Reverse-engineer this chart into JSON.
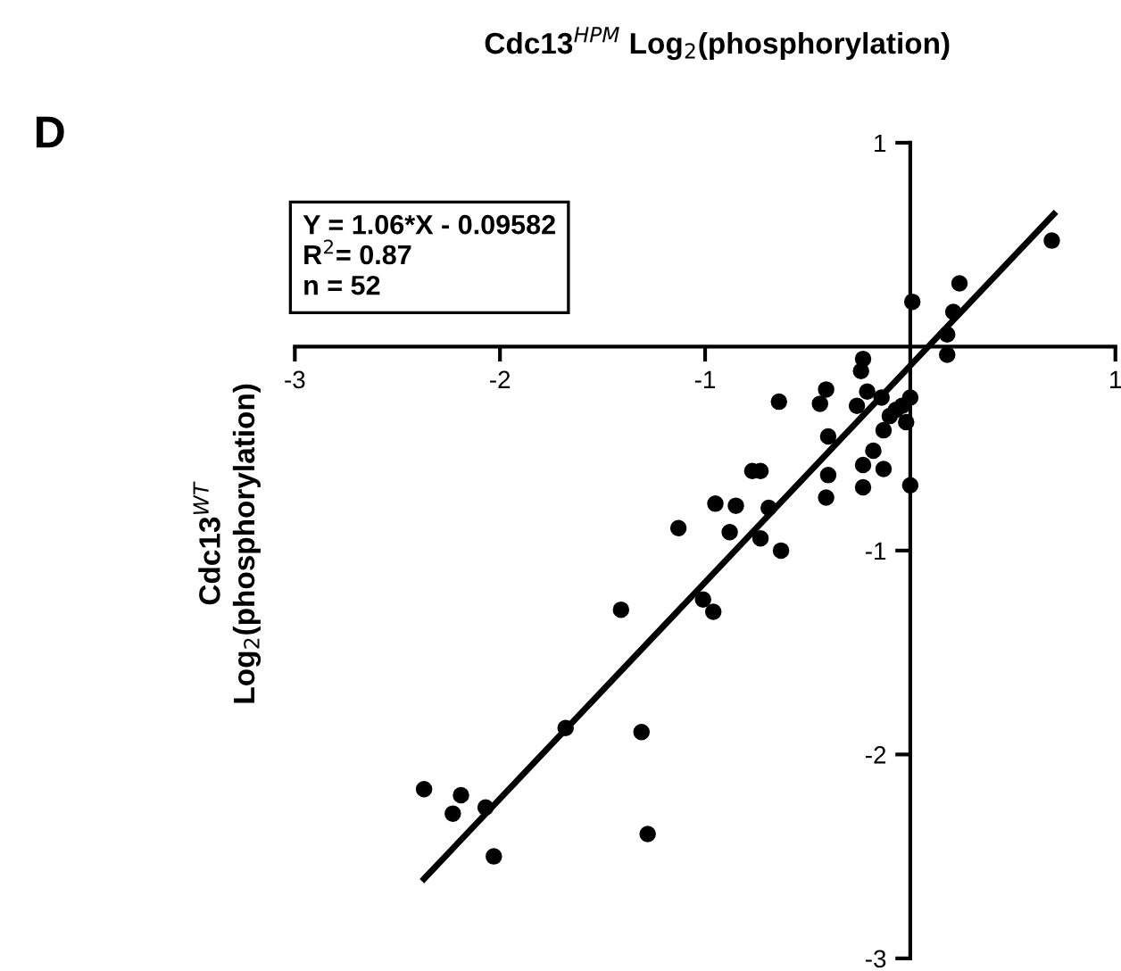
{
  "chart_data": {
    "type": "scatter",
    "title": "Cdc13$^{HPM}$ Log$_{2}$(phosphorylation)",
    "ylabel": "Cdc13$^{WT}$\nLog$_{2}$(phosphorylation)",
    "annotations": [
      "D",
      "Y = 1.06*X - 0.09582\nR$^{2}$= 0.87\nn = 52"
    ],
    "xlim": [
      -3,
      1
    ],
    "ylim": [
      -3,
      1
    ],
    "xticks": [
      -3,
      -2,
      -1,
      1
    ],
    "yticks": [
      -3,
      -2,
      -1,
      1
    ],
    "grid": false,
    "legend": false,
    "series": [
      {
        "color": "#000000",
        "marker": "circle",
        "x": [
          0.69,
          0.24,
          0.01,
          0.21,
          0.18,
          0.18,
          -0.23,
          -0.24,
          -0.41,
          -0.21,
          -0.44,
          -0.64,
          -0.26,
          -0.14,
          0.0,
          -0.04,
          -0.07,
          -0.1,
          -0.02,
          -0.13,
          -0.4,
          -0.18,
          -0.23,
          -0.13,
          -0.4,
          -0.77,
          -0.73,
          -0.23,
          0.0,
          -0.41,
          -0.95,
          -0.85,
          -0.69,
          -1.13,
          -0.88,
          -0.73,
          -0.63,
          -1.01,
          -0.96,
          -1.41,
          -1.68,
          -1.31,
          -2.37,
          -2.19,
          -2.23,
          -2.07,
          -1.28,
          -2.03
        ],
        "values": [
          0.52,
          0.31,
          0.22,
          0.17,
          0.06,
          -0.04,
          -0.06,
          -0.12,
          -0.21,
          -0.22,
          -0.28,
          -0.27,
          -0.29,
          -0.25,
          -0.25,
          -0.29,
          -0.31,
          -0.34,
          -0.37,
          -0.41,
          -0.44,
          -0.51,
          -0.58,
          -0.6,
          -0.63,
          -0.61,
          -0.61,
          -0.69,
          -0.68,
          -0.74,
          -0.77,
          -0.78,
          -0.79,
          -0.89,
          -0.91,
          -0.94,
          -1.0,
          -1.24,
          -1.3,
          -1.29,
          -1.87,
          -1.89,
          -2.17,
          -2.2,
          -2.29,
          -2.26,
          -2.39,
          -2.5
        ]
      },
      {
        "type": "line",
        "color": "#000000",
        "line_style": "solid",
        "x": [
          -2.37,
          0.7
        ],
        "values": [
          -2.61,
          0.65
        ]
      }
    ]
  }
}
